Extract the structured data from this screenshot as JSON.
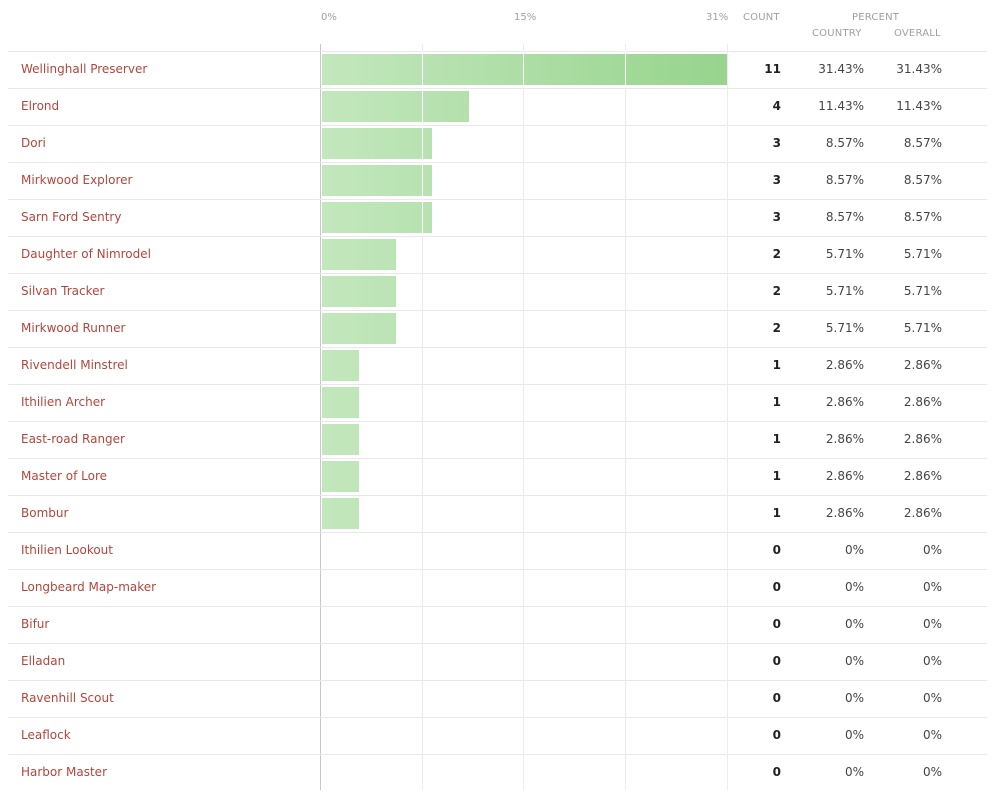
{
  "header": {
    "ticks": [
      "0%",
      "15%",
      "31%"
    ],
    "count_label": "COUNT",
    "percent_label": "PERCENT",
    "country_label": "COUNTRY",
    "overall_label": "OVERALL"
  },
  "rows": [
    {
      "name": "Wellinghall Preserver",
      "count": "11",
      "country": "31.43%",
      "overall": "31.43%",
      "value": 31.43
    },
    {
      "name": "Elrond",
      "count": "4",
      "country": "11.43%",
      "overall": "11.43%",
      "value": 11.43
    },
    {
      "name": "Dori",
      "count": "3",
      "country": "8.57%",
      "overall": "8.57%",
      "value": 8.57
    },
    {
      "name": "Mirkwood Explorer",
      "count": "3",
      "country": "8.57%",
      "overall": "8.57%",
      "value": 8.57
    },
    {
      "name": "Sarn Ford Sentry",
      "count": "3",
      "country": "8.57%",
      "overall": "8.57%",
      "value": 8.57
    },
    {
      "name": "Daughter of Nimrodel",
      "count": "2",
      "country": "5.71%",
      "overall": "5.71%",
      "value": 5.71
    },
    {
      "name": "Silvan Tracker",
      "count": "2",
      "country": "5.71%",
      "overall": "5.71%",
      "value": 5.71
    },
    {
      "name": "Mirkwood Runner",
      "count": "2",
      "country": "5.71%",
      "overall": "5.71%",
      "value": 5.71
    },
    {
      "name": "Rivendell Minstrel",
      "count": "1",
      "country": "2.86%",
      "overall": "2.86%",
      "value": 2.86
    },
    {
      "name": "Ithilien Archer",
      "count": "1",
      "country": "2.86%",
      "overall": "2.86%",
      "value": 2.86
    },
    {
      "name": "East-road Ranger",
      "count": "1",
      "country": "2.86%",
      "overall": "2.86%",
      "value": 2.86
    },
    {
      "name": "Master of Lore",
      "count": "1",
      "country": "2.86%",
      "overall": "2.86%",
      "value": 2.86
    },
    {
      "name": "Bombur",
      "count": "1",
      "country": "2.86%",
      "overall": "2.86%",
      "value": 2.86
    },
    {
      "name": "Ithilien Lookout",
      "count": "0",
      "country": "0%",
      "overall": "0%",
      "value": 0
    },
    {
      "name": "Longbeard Map-maker",
      "count": "0",
      "country": "0%",
      "overall": "0%",
      "value": 0
    },
    {
      "name": "Bifur",
      "count": "0",
      "country": "0%",
      "overall": "0%",
      "value": 0
    },
    {
      "name": "Elladan",
      "count": "0",
      "country": "0%",
      "overall": "0%",
      "value": 0
    },
    {
      "name": "Ravenhill Scout",
      "count": "0",
      "country": "0%",
      "overall": "0%",
      "value": 0
    },
    {
      "name": "Leaflock",
      "count": "0",
      "country": "0%",
      "overall": "0%",
      "value": 0
    },
    {
      "name": "Harbor Master",
      "count": "0",
      "country": "0%",
      "overall": "0%",
      "value": 0
    }
  ],
  "colors": {
    "name_link": "#b3463c",
    "bar_start": "#c3e7bd",
    "bar_end": "#97d48d"
  },
  "chart_data": {
    "type": "bar",
    "orientation": "horizontal",
    "title": "",
    "xlabel": "",
    "ylabel": "",
    "xlim": [
      0,
      31.43
    ],
    "tick_labels": [
      "0%",
      "15%",
      "31%"
    ],
    "grid": true,
    "categories": [
      "Wellinghall Preserver",
      "Elrond",
      "Dori",
      "Mirkwood Explorer",
      "Sarn Ford Sentry",
      "Daughter of Nimrodel",
      "Silvan Tracker",
      "Mirkwood Runner",
      "Rivendell Minstrel",
      "Ithilien Archer",
      "East-road Ranger",
      "Master of Lore",
      "Bombur",
      "Ithilien Lookout",
      "Longbeard Map-maker",
      "Bifur",
      "Elladan",
      "Ravenhill Scout",
      "Leaflock",
      "Harbor Master"
    ],
    "series": [
      {
        "name": "Count",
        "values": [
          11,
          4,
          3,
          3,
          3,
          2,
          2,
          2,
          1,
          1,
          1,
          1,
          1,
          0,
          0,
          0,
          0,
          0,
          0,
          0
        ]
      },
      {
        "name": "Percent Country",
        "values": [
          31.43,
          11.43,
          8.57,
          8.57,
          8.57,
          5.71,
          5.71,
          5.71,
          2.86,
          2.86,
          2.86,
          2.86,
          2.86,
          0,
          0,
          0,
          0,
          0,
          0,
          0
        ]
      },
      {
        "name": "Percent Overall",
        "values": [
          31.43,
          11.43,
          8.57,
          8.57,
          8.57,
          5.71,
          5.71,
          5.71,
          2.86,
          2.86,
          2.86,
          2.86,
          2.86,
          0,
          0,
          0,
          0,
          0,
          0,
          0
        ]
      }
    ]
  }
}
